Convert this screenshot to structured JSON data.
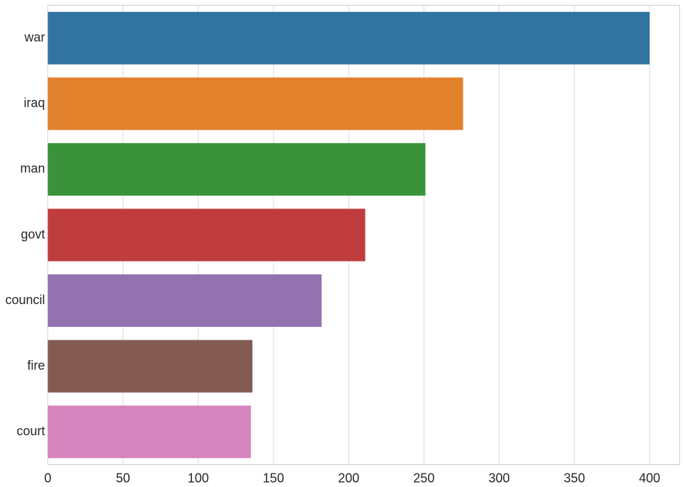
{
  "chart_data": {
    "type": "bar",
    "orientation": "horizontal",
    "categories": [
      "war",
      "iraq",
      "man",
      "govt",
      "council",
      "fire",
      "court"
    ],
    "values": [
      400,
      276,
      251,
      211,
      182,
      136,
      135
    ],
    "colors": [
      "#3274a1",
      "#e1812c",
      "#3a923a",
      "#c03d3e",
      "#9372b2",
      "#845b53",
      "#d684bd"
    ],
    "xlim": [
      0,
      420
    ],
    "xticks": [
      0,
      50,
      100,
      150,
      200,
      250,
      300,
      350,
      400
    ],
    "grid": true
  }
}
